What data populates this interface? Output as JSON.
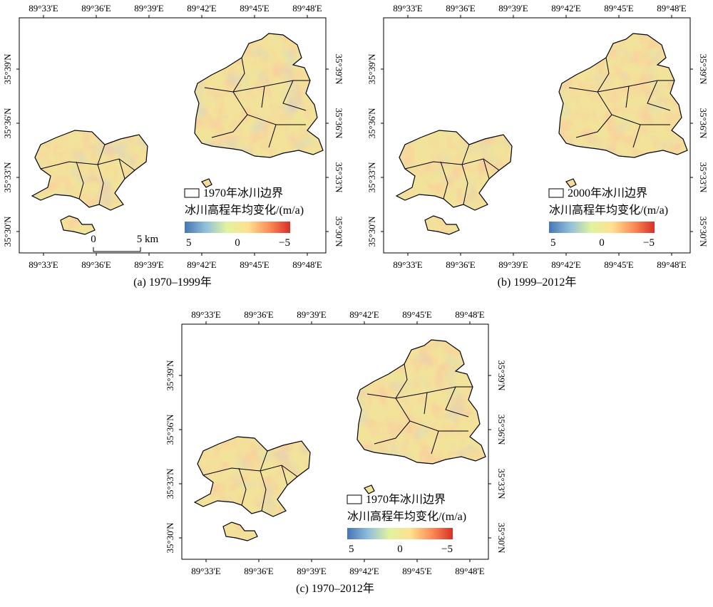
{
  "panels": [
    {
      "id": "a",
      "caption": "(a) 1970–1999年",
      "legend_boundary": "1970年冰川边界",
      "legend_title": "冰川高程年均变化/(m/a)",
      "legend_min": "5",
      "legend_mid": "0",
      "legend_max": "−5",
      "tone": 0.6,
      "scalebar": {
        "left": "0",
        "right": "5 km"
      }
    },
    {
      "id": "b",
      "caption": "(b) 1999–2012年",
      "legend_boundary": "2000年冰川边界",
      "legend_title": "冰川高程年均变化/(m/a)",
      "legend_min": "5",
      "legend_mid": "0",
      "legend_max": "−5",
      "tone": 0.3
    },
    {
      "id": "c",
      "caption": "(c) 1970–2012年",
      "legend_boundary": "1970年冰川边界",
      "legend_title": "冰川高程年均变化/(m/a)",
      "legend_min": "5",
      "legend_mid": "0",
      "legend_max": "−5",
      "tone": 0.45
    }
  ],
  "axes": {
    "lon_labels": [
      "89°33'E",
      "89°36'E",
      "89°39'E",
      "89°42'E",
      "89°45'E",
      "89°48'E"
    ],
    "lat_labels": [
      "35°39'N",
      "35°36'N",
      "35°33'N",
      "35°30'N"
    ]
  },
  "colors": {
    "ramp": [
      "#4575b4",
      "#91bfdb",
      "#e0f3a0",
      "#fee090",
      "#fc8d59",
      "#d73027"
    ],
    "boundary": "#000000"
  }
}
